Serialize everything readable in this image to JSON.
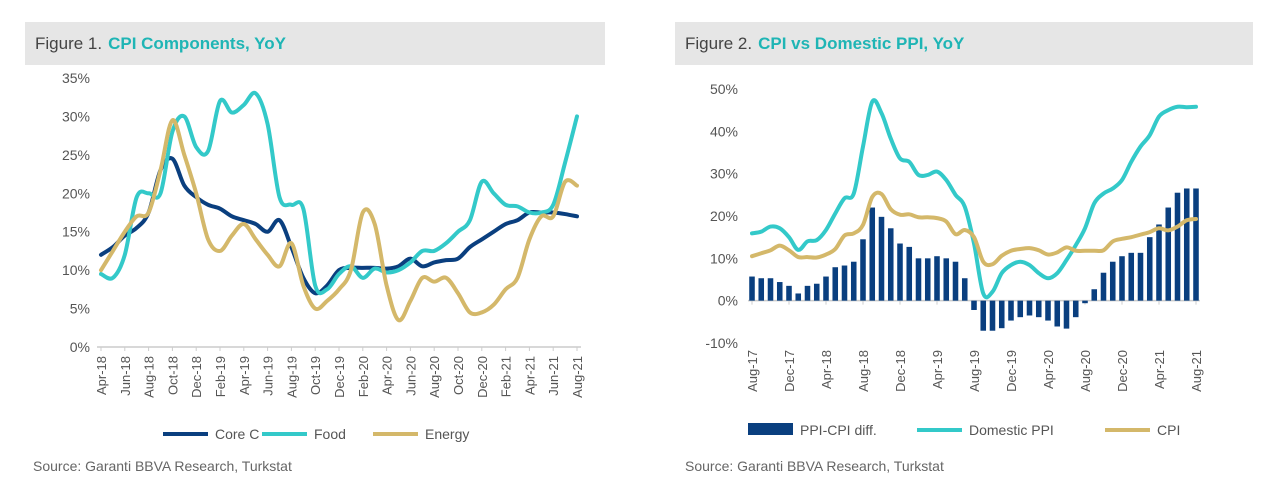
{
  "colors": {
    "navy": "#0a3f7f",
    "teal": "#33c9c9",
    "gold": "#d4b86a"
  },
  "figure1": {
    "label": "Figure 1.",
    "title": "CPI Components, YoY",
    "source": "Source: Garanti BBVA Research, Turkstat"
  },
  "figure2": {
    "label": "Figure 2.",
    "title": "CPI vs Domestic PPI, YoY",
    "source": "Source: Garanti BBVA Research, Turkstat"
  },
  "chart_data": [
    {
      "type": "line",
      "title": "CPI Components, YoY",
      "x_start": "Apr-18",
      "x_end": "Aug-21",
      "frequency": "monthly",
      "tick_labels": [
        "Apr-18",
        "Jun-18",
        "Aug-18",
        "Oct-18",
        "Dec-18",
        "Feb-19",
        "Apr-19",
        "Jun-19",
        "Aug-19",
        "Oct-19",
        "Dec-19",
        "Feb-20",
        "Apr-20",
        "Jun-20",
        "Aug-20",
        "Oct-20",
        "Dec-20",
        "Feb-21",
        "Apr-21",
        "Jun-21",
        "Aug-21"
      ],
      "yticks": [
        "0%",
        "5%",
        "10%",
        "15%",
        "20%",
        "25%",
        "30%",
        "35%"
      ],
      "ylim": [
        0,
        35
      ],
      "grid": false,
      "legend": "bottom",
      "series": [
        {
          "name": "Core C",
          "color": "#0a3f7f",
          "values": [
            12,
            13,
            14.5,
            15.5,
            17.5,
            23,
            24.5,
            21,
            19.5,
            18.5,
            18,
            17,
            16.5,
            16,
            15,
            16.5,
            13,
            9,
            7,
            8,
            10,
            10.3,
            10.3,
            10.3,
            10.2,
            10.5,
            11.5,
            10.5,
            11,
            11.3,
            11.5,
            13,
            14,
            15,
            16,
            16.5,
            17.5,
            17.5,
            17.5,
            17.3,
            17
          ]
        },
        {
          "name": "Food",
          "color": "#33c9c9",
          "values": [
            9.5,
            9,
            12,
            19.5,
            20,
            20,
            28,
            30,
            26,
            25.5,
            32,
            30.5,
            31.5,
            33,
            29,
            19.5,
            18.5,
            18,
            8,
            7.5,
            9.5,
            10.5,
            9,
            10.2,
            9.7,
            10,
            11,
            12.5,
            12.5,
            13.5,
            15,
            16.5,
            21.5,
            20,
            18.5,
            18.3,
            17.5,
            17.5,
            18.5,
            24,
            30
          ]
        },
        {
          "name": "Energy",
          "color": "#d4b86a",
          "values": [
            10,
            12.5,
            15,
            17,
            17.5,
            23,
            29.5,
            25,
            20,
            14,
            12.5,
            14.5,
            16,
            14,
            12,
            10.5,
            13.5,
            8,
            5,
            6,
            7.5,
            10,
            17.5,
            16,
            8,
            3.5,
            6,
            9,
            8.5,
            9,
            7,
            4.5,
            4.5,
            5.5,
            7.5,
            9,
            14,
            17,
            17,
            21.5,
            21
          ]
        }
      ]
    },
    {
      "type": "bar+line",
      "title": "CPI vs Domestic PPI, YoY",
      "x_start": "Aug-17",
      "x_end": "Aug-21",
      "frequency": "monthly",
      "tick_labels": [
        "Aug-17",
        "Dec-17",
        "Apr-18",
        "Aug-18",
        "Dec-18",
        "Apr-19",
        "Aug-19",
        "Dec-19",
        "Apr-20",
        "Aug-20",
        "Dec-20",
        "Apr-21",
        "Aug-21"
      ],
      "yticks": [
        "-10%",
        "0%",
        "10%",
        "20%",
        "30%",
        "40%",
        "50%"
      ],
      "ylim": [
        -10,
        50
      ],
      "grid": false,
      "legend": "bottom",
      "series": [
        {
          "name": "PPI-CPI diff.",
          "type": "bar",
          "color": "#0a3f7f",
          "values": [
            5.7,
            5.3,
            5.3,
            4.4,
            3.5,
            1.7,
            3.5,
            4,
            5.7,
            7.9,
            8.3,
            9.2,
            14.5,
            22,
            19.8,
            17.1,
            13.5,
            12.7,
            10,
            10,
            10.5,
            10,
            9.2,
            5.3,
            -2.2,
            -7.1,
            -7.1,
            -6.5,
            -4.7,
            -3.9,
            -3.5,
            -3.9,
            -4.7,
            -6.1,
            -6.6,
            -3.9,
            -0.6,
            2.7,
            6.6,
            9.2,
            10.5,
            11.3,
            11.3,
            15,
            18,
            22,
            25.5,
            26.5,
            26.5
          ]
        },
        {
          "name": "Domestic PPI",
          "type": "line",
          "color": "#33c9c9",
          "values": [
            15.9,
            16.3,
            17.5,
            17.1,
            15,
            12,
            14,
            14.3,
            16.7,
            20.6,
            24.2,
            25.3,
            36.4,
            47,
            44.3,
            38.3,
            33.6,
            32.8,
            29.7,
            29.7,
            30.5,
            28.5,
            25,
            22.2,
            13.5,
            1.7,
            2.1,
            6.5,
            8.4,
            9.2,
            8.4,
            6.5,
            5.3,
            6.5,
            9.6,
            13.1,
            17.1,
            23,
            25.3,
            26.5,
            28.5,
            32.8,
            36.4,
            39.1,
            43.5,
            45,
            45.8,
            45.7,
            45.8
          ]
        },
        {
          "name": "CPI",
          "type": "line",
          "color": "#d4b86a",
          "values": [
            10.5,
            11.2,
            11.9,
            13,
            11.9,
            10.3,
            10.3,
            10.2,
            10.9,
            12.2,
            15.4,
            15.9,
            17.9,
            24.5,
            25.2,
            21.6,
            20.3,
            20.4,
            19.7,
            19.7,
            19.5,
            18.7,
            15.7,
            16.7,
            15,
            9.2,
            8.6,
            10.6,
            11.8,
            12.2,
            12.4,
            11.9,
            10.9,
            11.4,
            12.6,
            11.8,
            11.8,
            11.8,
            11.9,
            14,
            14.6,
            15,
            15.6,
            16.2,
            17.1,
            16.6,
            17.5,
            19,
            19.3
          ]
        }
      ]
    }
  ]
}
